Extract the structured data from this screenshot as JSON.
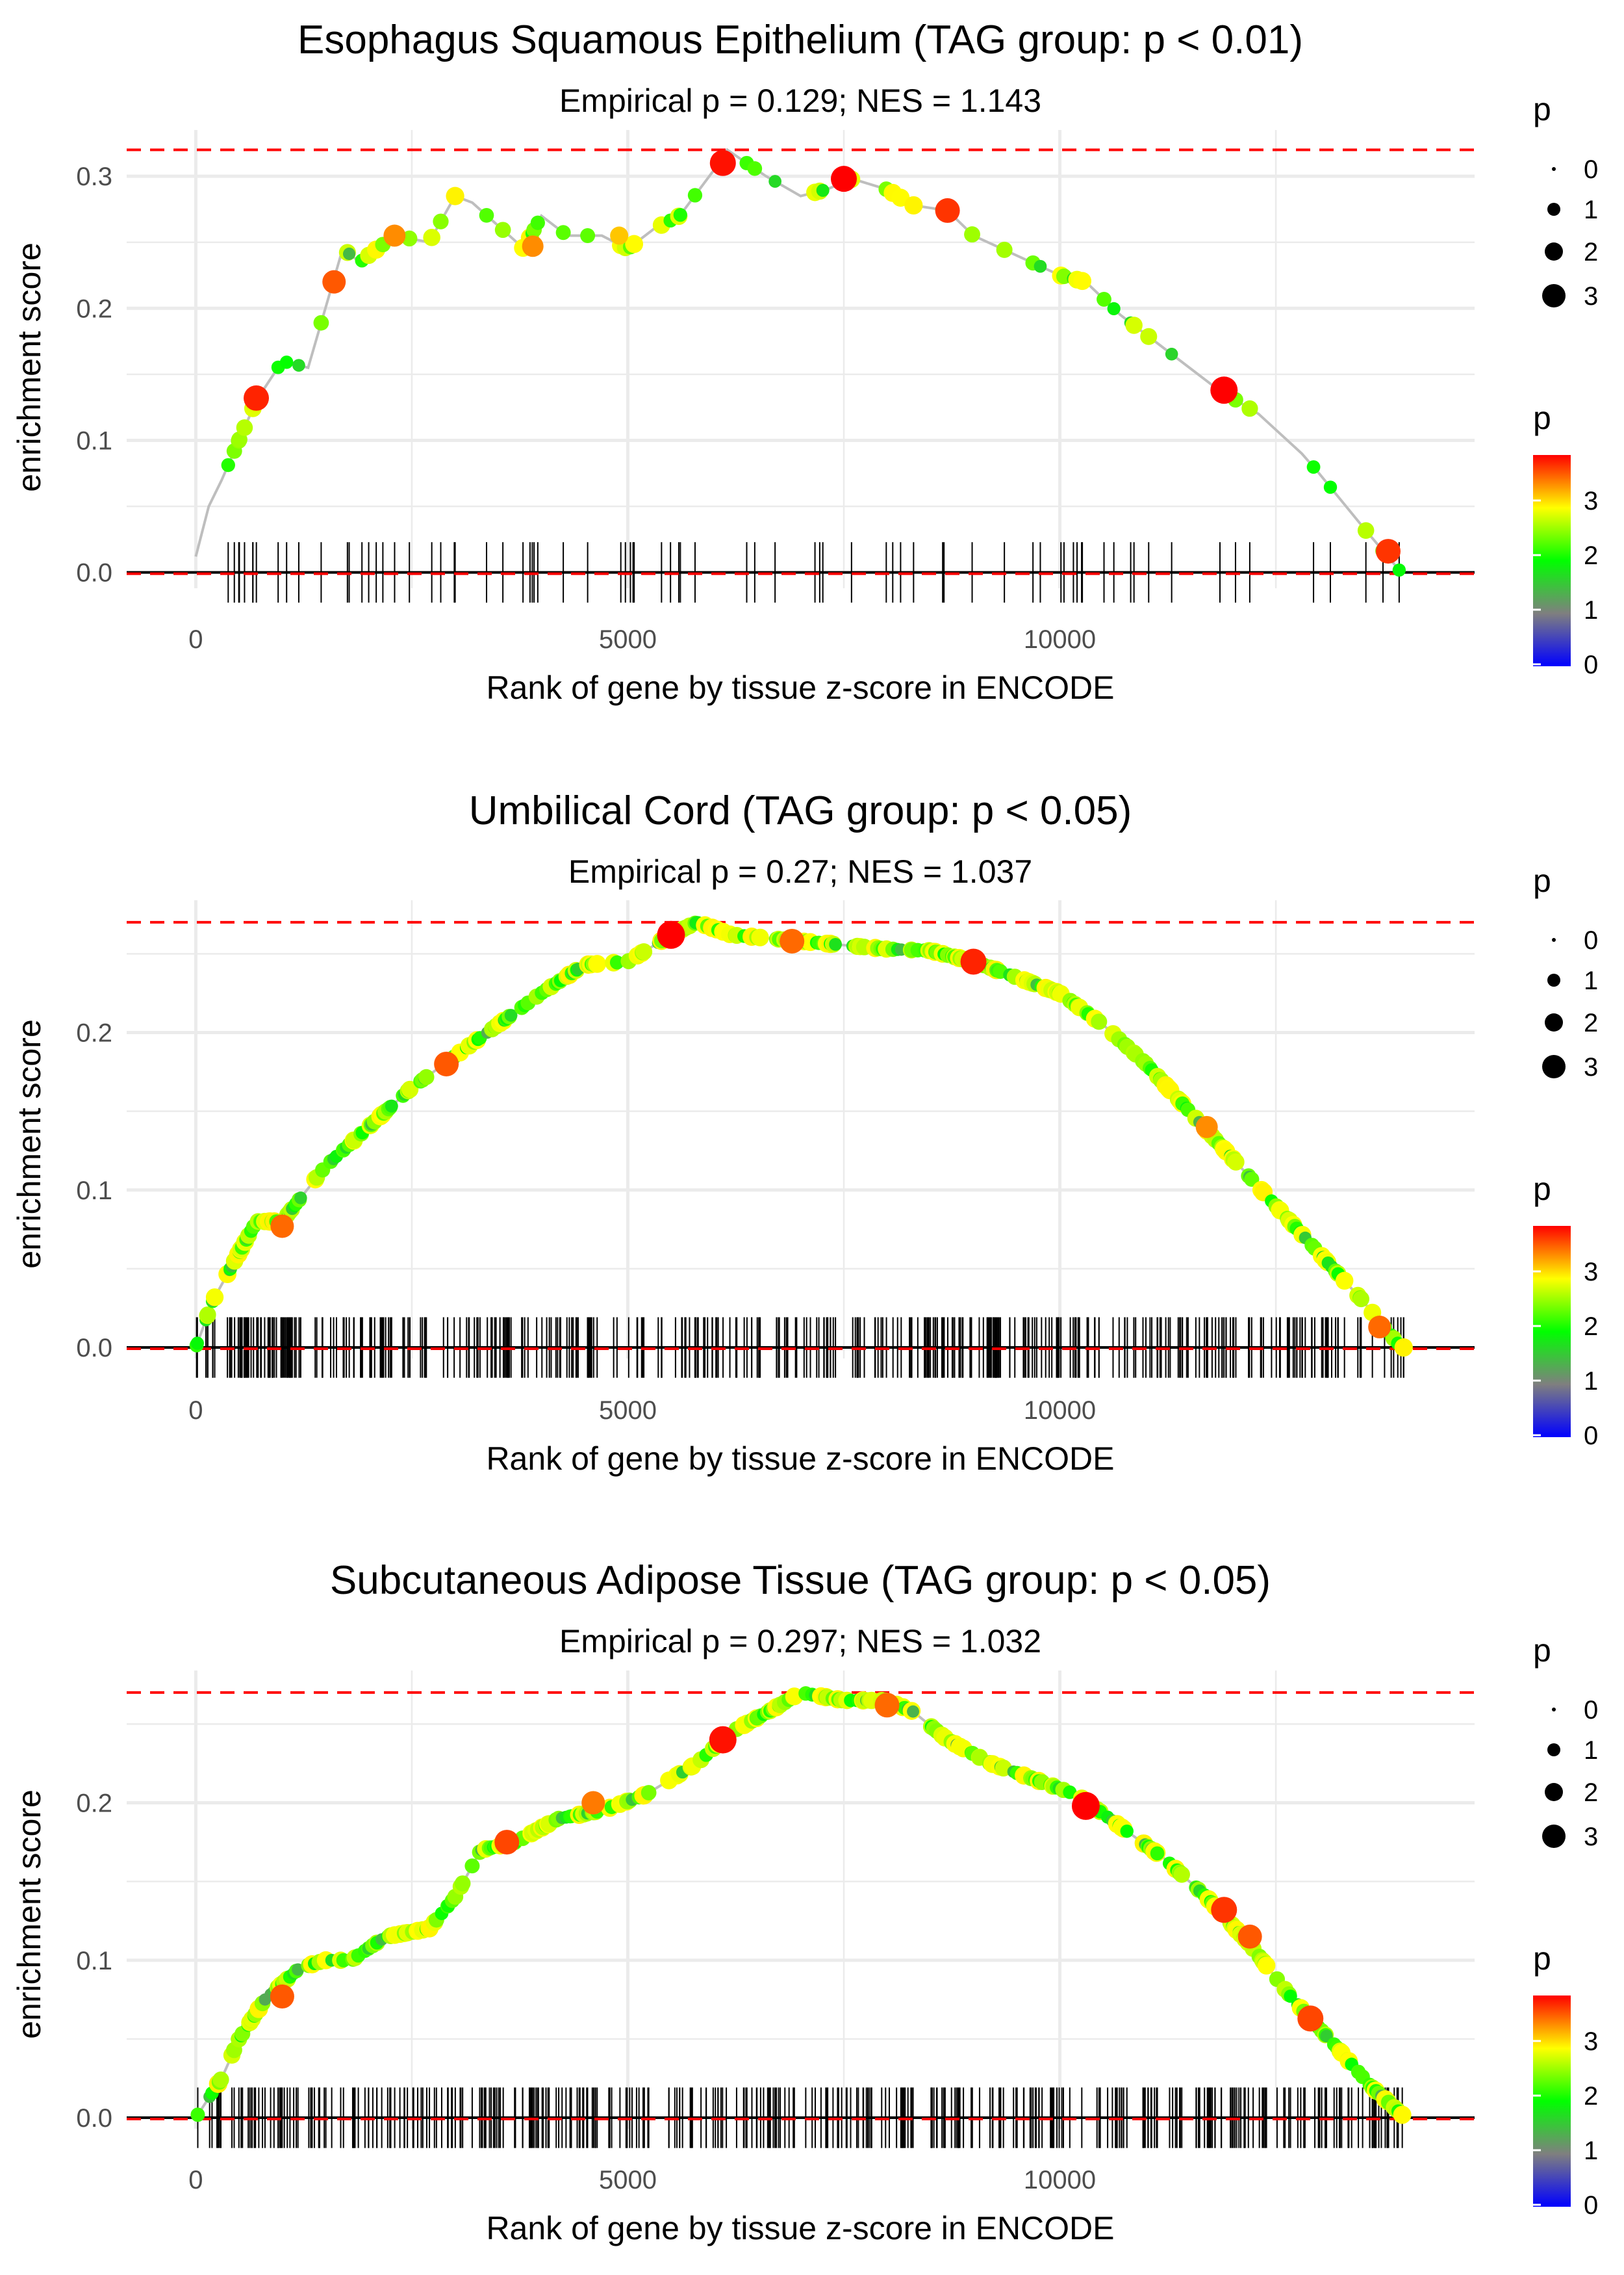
{
  "colors": {
    "ref_line": "#ff0000",
    "curve_line": "#bebebe",
    "grid": "#ebebeb",
    "hit_tick": "#000000",
    "colorbar": [
      "#0000ff",
      "#7f7f7f",
      "#00ff00",
      "#ffff00",
      "#ff0000"
    ]
  },
  "chart_data": [
    {
      "type": "line",
      "title": "Esophagus Squamous Epithelium (TAG group: p < 0.01)",
      "subtitle": "Empirical p = 0.129; NES = 1.143",
      "xlabel": "Rank of gene by tissue z-score in ENCODE",
      "ylabel": "enrichment score",
      "xlim": [
        -800,
        14800
      ],
      "ylim": [
        -0.012,
        0.335
      ],
      "x_ticks": [
        0,
        5000,
        10000
      ],
      "x_tick_labels": [
        "0",
        "5000",
        "10000"
      ],
      "y_ticks": [
        0,
        0.1,
        0.2,
        0.3
      ],
      "y_tick_labels": [
        "0.0",
        "0.1",
        "0.2",
        "0.3"
      ],
      "max_es": 0.32,
      "min_es": 0,
      "n_genes": 14000,
      "n_hits": 80,
      "seed": 11,
      "curve": [
        [
          0,
          0.012
        ],
        [
          150,
          0.05
        ],
        [
          300,
          0.07
        ],
        [
          700,
          0.13
        ],
        [
          1000,
          0.16
        ],
        [
          1300,
          0.155
        ],
        [
          1500,
          0.2
        ],
        [
          1700,
          0.245
        ],
        [
          1900,
          0.235
        ],
        [
          2300,
          0.255
        ],
        [
          2700,
          0.25
        ],
        [
          3000,
          0.285
        ],
        [
          3200,
          0.28
        ],
        [
          3800,
          0.245
        ],
        [
          4000,
          0.27
        ],
        [
          4300,
          0.255
        ],
        [
          4700,
          0.255
        ],
        [
          5000,
          0.245
        ],
        [
          5300,
          0.26
        ],
        [
          5600,
          0.27
        ],
        [
          6000,
          0.305
        ],
        [
          6150,
          0.32
        ],
        [
          6600,
          0.3
        ],
        [
          7000,
          0.285
        ],
        [
          7300,
          0.29
        ],
        [
          7600,
          0.298
        ],
        [
          8000,
          0.29
        ],
        [
          8300,
          0.278
        ],
        [
          8700,
          0.274
        ],
        [
          9000,
          0.255
        ],
        [
          9500,
          0.24
        ],
        [
          10000,
          0.225
        ],
        [
          10300,
          0.22
        ],
        [
          10700,
          0.195
        ],
        [
          11200,
          0.17
        ],
        [
          11800,
          0.14
        ],
        [
          12300,
          0.12
        ],
        [
          12800,
          0.09
        ],
        [
          13000,
          0.075
        ],
        [
          13500,
          0.035
        ],
        [
          13950,
          0.0
        ]
      ],
      "highlights": [
        [
          700,
          0.132,
          2.9,
          3.6
        ],
        [
          1600,
          0.22,
          2.6,
          3.3
        ],
        [
          2300,
          0.255,
          2.4,
          3.0
        ],
        [
          3900,
          0.247,
          2.3,
          3.0
        ],
        [
          6100,
          0.31,
          3.0,
          3.7
        ],
        [
          7500,
          0.298,
          3.0,
          3.8
        ],
        [
          8700,
          0.274,
          2.8,
          3.5
        ],
        [
          11900,
          0.138,
          3.2,
          4.0
        ],
        [
          13800,
          0.016,
          2.8,
          3.5
        ],
        [
          4900,
          0.255,
          1.8,
          2.6
        ]
      ],
      "size_legend": {
        "title": "p",
        "labels": [
          "0",
          "1",
          "2",
          "3"
        ]
      },
      "color_legend": {
        "title": "p",
        "labels": [
          "0",
          "1",
          "2",
          "3"
        ]
      }
    },
    {
      "type": "line",
      "title": "Umbilical Cord (TAG group: p < 0.05)",
      "subtitle": "Empirical p = 0.27; NES = 1.037",
      "xlabel": "Rank of gene by tissue z-score in ENCODE",
      "ylabel": "enrichment score",
      "xlim": [
        -800,
        14800
      ],
      "ylim": [
        -0.007,
        0.284
      ],
      "x_ticks": [
        0,
        5000,
        10000
      ],
      "x_tick_labels": [
        "0",
        "5000",
        "10000"
      ],
      "y_ticks": [
        0,
        0.1,
        0.2
      ],
      "y_tick_labels": [
        "0.0",
        "0.1",
        "0.2"
      ],
      "max_es": 0.27,
      "min_es": 0,
      "n_genes": 14000,
      "n_hits": 420,
      "seed": 23,
      "curve": [
        [
          0,
          0.0
        ],
        [
          200,
          0.03
        ],
        [
          400,
          0.05
        ],
        [
          700,
          0.08
        ],
        [
          1000,
          0.08
        ],
        [
          1500,
          0.115
        ],
        [
          2000,
          0.14
        ],
        [
          2500,
          0.165
        ],
        [
          3000,
          0.185
        ],
        [
          3500,
          0.205
        ],
        [
          4000,
          0.225
        ],
        [
          4500,
          0.243
        ],
        [
          5000,
          0.245
        ],
        [
          5500,
          0.262
        ],
        [
          5800,
          0.27
        ],
        [
          6200,
          0.262
        ],
        [
          7000,
          0.258
        ],
        [
          8000,
          0.253
        ],
        [
          8500,
          0.252
        ],
        [
          9000,
          0.245
        ],
        [
          9500,
          0.235
        ],
        [
          10000,
          0.225
        ],
        [
          10500,
          0.205
        ],
        [
          11000,
          0.18
        ],
        [
          11500,
          0.15
        ],
        [
          12000,
          0.12
        ],
        [
          12500,
          0.09
        ],
        [
          13000,
          0.06
        ],
        [
          13500,
          0.03
        ],
        [
          13950,
          0.0
        ]
      ],
      "highlights": [
        [
          5500,
          0.262,
          3.3,
          3.8
        ],
        [
          1000,
          0.077,
          2.6,
          3.2
        ],
        [
          2900,
          0.18,
          2.8,
          3.3
        ],
        [
          9000,
          0.245,
          3.0,
          3.6
        ],
        [
          6900,
          0.258,
          2.8,
          3.2
        ],
        [
          13700,
          0.013,
          2.5,
          3.2
        ],
        [
          11700,
          0.14,
          2.4,
          3.0
        ]
      ],
      "size_legend": {
        "title": "p",
        "labels": [
          "0",
          "1",
          "2",
          "3"
        ]
      },
      "color_legend": {
        "title": "p",
        "labels": [
          "0",
          "1",
          "2",
          "3"
        ]
      }
    },
    {
      "type": "line",
      "title": "Subcutaneous Adipose Tissue (TAG group: p < 0.05)",
      "subtitle": "Empirical p = 0.297; NES = 1.032",
      "xlabel": "Rank of gene by tissue z-score in ENCODE",
      "ylabel": "enrichment score",
      "xlim": [
        -800,
        14800
      ],
      "ylim": [
        -0.007,
        0.284
      ],
      "x_ticks": [
        0,
        5000,
        10000
      ],
      "x_tick_labels": [
        "0",
        "5000",
        "10000"
      ],
      "y_ticks": [
        0,
        0.1,
        0.2
      ],
      "y_tick_labels": [
        "0.0",
        "0.1",
        "0.2"
      ],
      "max_es": 0.27,
      "min_es": 0,
      "n_genes": 14000,
      "n_hits": 420,
      "seed": 37,
      "curve": [
        [
          0,
          0.0
        ],
        [
          300,
          0.025
        ],
        [
          500,
          0.05
        ],
        [
          800,
          0.075
        ],
        [
          1200,
          0.095
        ],
        [
          1500,
          0.1
        ],
        [
          1800,
          0.1
        ],
        [
          2200,
          0.115
        ],
        [
          2700,
          0.12
        ],
        [
          3000,
          0.14
        ],
        [
          3300,
          0.17
        ],
        [
          3700,
          0.175
        ],
        [
          4200,
          0.19
        ],
        [
          4700,
          0.195
        ],
        [
          5200,
          0.205
        ],
        [
          5800,
          0.225
        ],
        [
          6200,
          0.245
        ],
        [
          6700,
          0.26
        ],
        [
          7000,
          0.27
        ],
        [
          7500,
          0.265
        ],
        [
          8000,
          0.265
        ],
        [
          8300,
          0.258
        ],
        [
          8700,
          0.24
        ],
        [
          9200,
          0.225
        ],
        [
          9700,
          0.215
        ],
        [
          10200,
          0.205
        ],
        [
          10700,
          0.185
        ],
        [
          11200,
          0.165
        ],
        [
          11700,
          0.14
        ],
        [
          12200,
          0.11
        ],
        [
          12700,
          0.075
        ],
        [
          13200,
          0.045
        ],
        [
          13600,
          0.02
        ],
        [
          14000,
          0.0
        ]
      ],
      "highlights": [
        [
          1000,
          0.077,
          2.7,
          3.3
        ],
        [
          3600,
          0.175,
          2.8,
          3.4
        ],
        [
          6100,
          0.24,
          3.2,
          3.7
        ],
        [
          10300,
          0.198,
          3.3,
          3.9
        ],
        [
          11900,
          0.132,
          3.0,
          3.5
        ],
        [
          12200,
          0.115,
          2.7,
          3.3
        ],
        [
          12900,
          0.063,
          3.0,
          3.4
        ],
        [
          8000,
          0.262,
          2.8,
          3.2
        ],
        [
          4600,
          0.2,
          2.6,
          3.1
        ]
      ],
      "size_legend": {
        "title": "p",
        "labels": [
          "0",
          "1",
          "2",
          "3"
        ]
      },
      "color_legend": {
        "title": "p",
        "labels": [
          "0",
          "1",
          "2",
          "3"
        ]
      }
    }
  ]
}
